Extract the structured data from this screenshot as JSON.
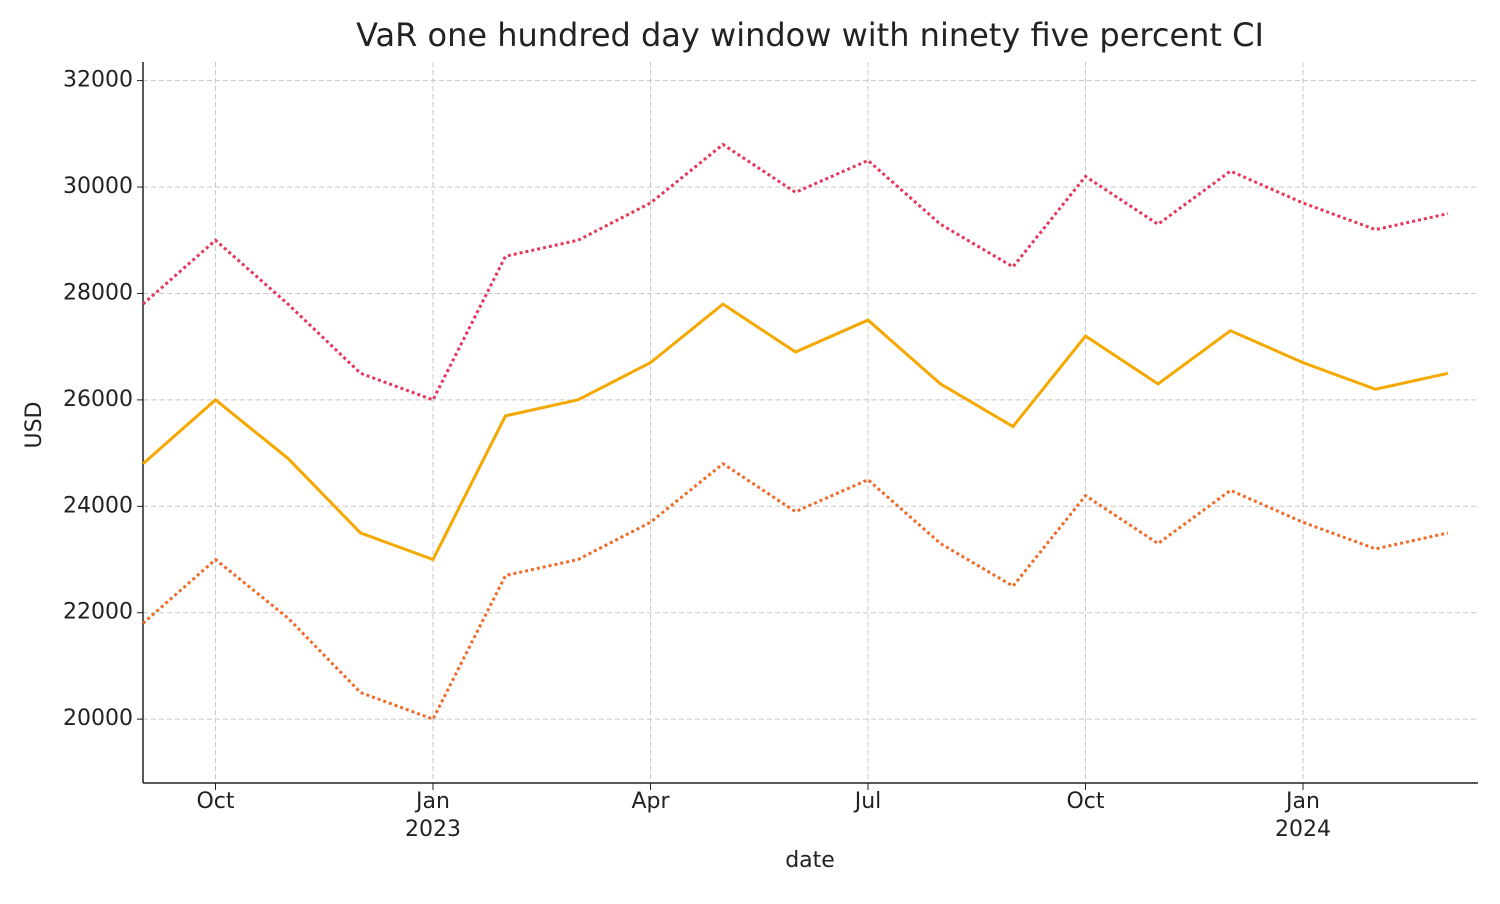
{
  "chart_data": {
    "type": "line",
    "title": "VaR one hundred day window with ninety five percent CI",
    "xlabel": "date",
    "ylabel": "USD",
    "x": [
      "2022-09",
      "2022-10",
      "2022-11",
      "2022-12",
      "2023-01",
      "2023-02",
      "2023-03",
      "2023-04",
      "2023-05",
      "2023-06",
      "2023-07",
      "2023-08",
      "2023-09",
      "2023-10",
      "2023-11",
      "2023-12",
      "2024-01",
      "2024-02",
      "2024-03"
    ],
    "series": [
      {
        "color": "#e8365a",
        "dash": "dotted",
        "values": [
          27800,
          29000,
          27800,
          26500,
          26000,
          28700,
          29000,
          29700,
          30800,
          29900,
          30500,
          29300,
          28500,
          30200,
          29300,
          30300,
          29700,
          29200,
          29500
        ]
      },
      {
        "color": "#f5a800",
        "dash": "solid",
        "values": [
          24800,
          26000,
          24900,
          23500,
          23000,
          25700,
          26000,
          26700,
          27800,
          26900,
          27500,
          26300,
          25500,
          27200,
          26300,
          27300,
          26700,
          26200,
          26500
        ]
      },
      {
        "color": "#f06a28",
        "dash": "dotted",
        "values": [
          21800,
          23000,
          21900,
          20500,
          20000,
          22700,
          23000,
          23700,
          24800,
          23900,
          24500,
          23300,
          22500,
          24200,
          23300,
          24300,
          23700,
          23200,
          23500
        ]
      }
    ],
    "xlim": [
      "2022-09",
      "2024-03"
    ],
    "xticks": [
      {
        "value": "2022-10",
        "label": "Oct"
      },
      {
        "value": "2023-01",
        "label": "Jan",
        "sublabel": "2023"
      },
      {
        "value": "2023-04",
        "label": "Apr"
      },
      {
        "value": "2023-07",
        "label": "Jul"
      },
      {
        "value": "2023-10",
        "label": "Oct"
      },
      {
        "value": "2024-01",
        "label": "Jan",
        "sublabel": "2024"
      }
    ],
    "ylim": [
      18800,
      32350
    ],
    "yticks": [
      20000,
      22000,
      24000,
      26000,
      28000,
      30000,
      32000
    ],
    "grid": true
  }
}
